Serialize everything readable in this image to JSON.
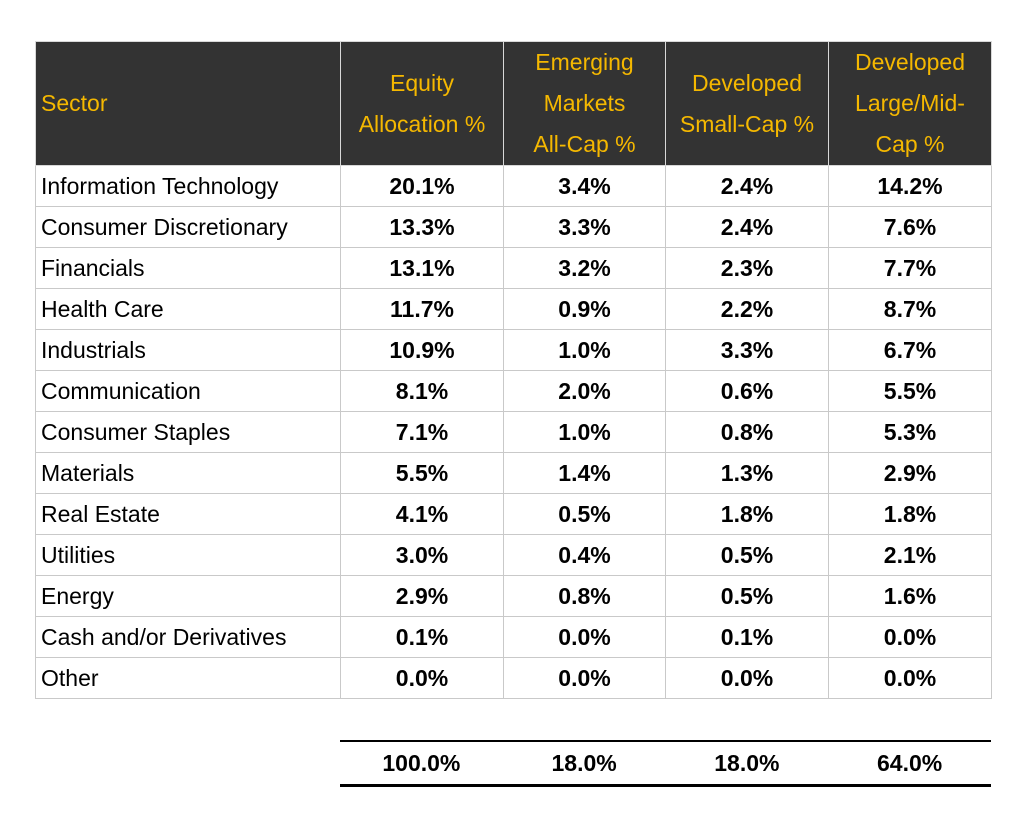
{
  "table": {
    "headers": {
      "sector": "Sector",
      "equity": [
        "Equity",
        "Allocation %"
      ],
      "emerging": [
        "Emerging",
        "Markets",
        "All-Cap %"
      ],
      "small_cap": [
        "Developed",
        "Small-Cap %"
      ],
      "large_mid": [
        "Developed",
        "Large/Mid-",
        "Cap %"
      ]
    },
    "rows": [
      {
        "sector": "Information Technology",
        "equity": "20.1%",
        "emerging": "3.4%",
        "small_cap": "2.4%",
        "large_mid": "14.2%"
      },
      {
        "sector": "Consumer Discretionary",
        "equity": "13.3%",
        "emerging": "3.3%",
        "small_cap": "2.4%",
        "large_mid": "7.6%"
      },
      {
        "sector": "Financials",
        "equity": "13.1%",
        "emerging": "3.2%",
        "small_cap": "2.3%",
        "large_mid": "7.7%"
      },
      {
        "sector": "Health Care",
        "equity": "11.7%",
        "emerging": "0.9%",
        "small_cap": "2.2%",
        "large_mid": "8.7%"
      },
      {
        "sector": "Industrials",
        "equity": "10.9%",
        "emerging": "1.0%",
        "small_cap": "3.3%",
        "large_mid": "6.7%"
      },
      {
        "sector": "Communication",
        "equity": "8.1%",
        "emerging": "2.0%",
        "small_cap": "0.6%",
        "large_mid": "5.5%"
      },
      {
        "sector": "Consumer Staples",
        "equity": "7.1%",
        "emerging": "1.0%",
        "small_cap": "0.8%",
        "large_mid": "5.3%"
      },
      {
        "sector": "Materials",
        "equity": "5.5%",
        "emerging": "1.4%",
        "small_cap": "1.3%",
        "large_mid": "2.9%"
      },
      {
        "sector": "Real Estate",
        "equity": "4.1%",
        "emerging": "0.5%",
        "small_cap": "1.8%",
        "large_mid": "1.8%"
      },
      {
        "sector": "Utilities",
        "equity": "3.0%",
        "emerging": "0.4%",
        "small_cap": "0.5%",
        "large_mid": "2.1%"
      },
      {
        "sector": "Energy",
        "equity": "2.9%",
        "emerging": "0.8%",
        "small_cap": "0.5%",
        "large_mid": "1.6%"
      },
      {
        "sector": "Cash and/or Derivatives",
        "equity": "0.1%",
        "emerging": "0.0%",
        "small_cap": "0.1%",
        "large_mid": "0.0%"
      },
      {
        "sector": "Other",
        "equity": "0.0%",
        "emerging": "0.0%",
        "small_cap": "0.0%",
        "large_mid": "0.0%"
      }
    ],
    "totals": {
      "equity": "100.0%",
      "emerging": "18.0%",
      "small_cap": "18.0%",
      "large_mid": "64.0%"
    }
  },
  "colors": {
    "header_bg": "#333333",
    "header_text": "#f5b800",
    "grid": "#c9c9c9"
  }
}
